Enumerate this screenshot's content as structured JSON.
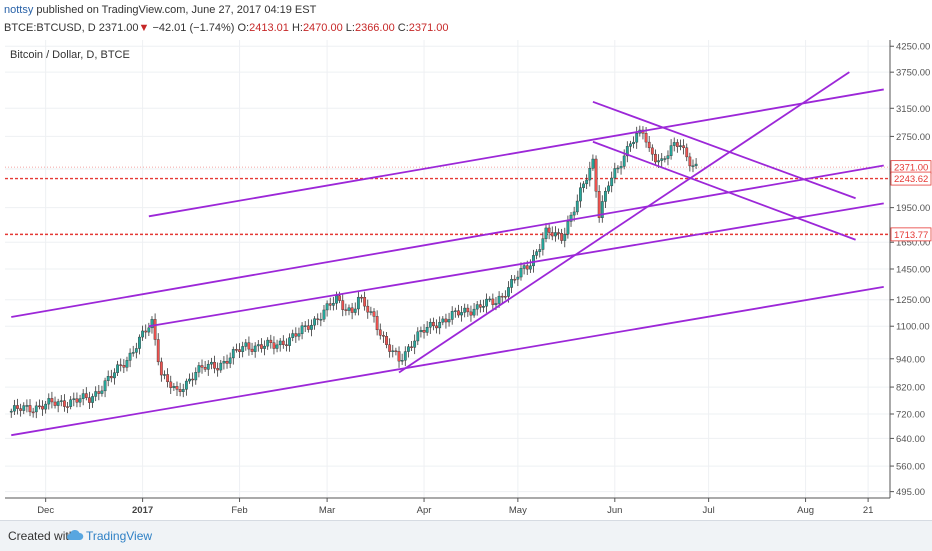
{
  "header": {
    "author": "nottsy",
    "published_text": "published on TradingView.com, June 27, 2017 04:19 EST",
    "symbol": "BTCE:BTCUSD, D",
    "last": "2371.00",
    "change_arrow": "▼",
    "change": "−42.01 (−1.74%)",
    "o_label": "O:",
    "o_value": "2413.01",
    "h_label": "H:",
    "h_value": "2470.00",
    "l_label": "L:",
    "l_value": "2366.00",
    "c_label": "C:",
    "c_value": "2371.00"
  },
  "footer": {
    "created_with": "Created with",
    "brand": "TradingView"
  },
  "colors": {
    "bull": "#26a69a",
    "bear": "#ef5350",
    "trend": "#9c27d8",
    "hline": "#e53935",
    "axis": "#555555"
  },
  "chart_data": {
    "type": "candlestick",
    "title": "Bitcoin / Dollar, D, BTCE",
    "x_tick_labels": [
      "Dec",
      "2017",
      "Feb",
      "Mar",
      "Apr",
      "May",
      "Jun",
      "Jul",
      "Aug",
      "21"
    ],
    "x_tick_dates": [
      "2016-12-01",
      "2017-01-01",
      "2017-02-01",
      "2017-03-01",
      "2017-04-01",
      "2017-05-01",
      "2017-06-01",
      "2017-07-01",
      "2017-08-01",
      "2017-08-21"
    ],
    "y_tick_labels": [
      "4250.00",
      "3750.00",
      "3150.00",
      "2750.00",
      "2350.00",
      "1950.00",
      "1650.00",
      "1450.00",
      "1250.00",
      "1100.00",
      "940.00",
      "820.00",
      "720.00",
      "640.00",
      "560.00",
      "495.00"
    ],
    "y_scale": "log",
    "price_labels": [
      {
        "text": "2371.00",
        "value": 2371,
        "color": "#e53935",
        "style": "dotted"
      },
      {
        "text": "2243.62",
        "value": 2243.62,
        "color": "#e53935",
        "style": "dashed"
      },
      {
        "text": "1713.77",
        "value": 1713.77,
        "color": "#e53935",
        "style": "dashed"
      }
    ],
    "series": [
      {
        "name": "BTCUSD",
        "close_path": [
          [
            "2016-11-20",
            730
          ],
          [
            "2016-12-05",
            760
          ],
          [
            "2016-12-15",
            775
          ],
          [
            "2016-12-22",
            860
          ],
          [
            "2016-12-28",
            960
          ],
          [
            "2017-01-04",
            1120
          ],
          [
            "2017-01-07",
            880
          ],
          [
            "2017-01-12",
            790
          ],
          [
            "2017-01-18",
            890
          ],
          [
            "2017-01-25",
            910
          ],
          [
            "2017-02-03",
            1000
          ],
          [
            "2017-02-12",
            1000
          ],
          [
            "2017-02-20",
            1060
          ],
          [
            "2017-02-28",
            1180
          ],
          [
            "2017-03-04",
            1250
          ],
          [
            "2017-03-09",
            1180
          ],
          [
            "2017-03-11",
            1250
          ],
          [
            "2017-03-16",
            1150
          ],
          [
            "2017-03-20",
            1000
          ],
          [
            "2017-03-24",
            930
          ],
          [
            "2017-03-29",
            1040
          ],
          [
            "2017-04-05",
            1120
          ],
          [
            "2017-04-15",
            1190
          ],
          [
            "2017-04-24",
            1240
          ],
          [
            "2017-05-01",
            1400
          ],
          [
            "2017-05-05",
            1500
          ],
          [
            "2017-05-10",
            1720
          ],
          [
            "2017-05-15",
            1700
          ],
          [
            "2017-05-20",
            2000
          ],
          [
            "2017-05-25",
            2450
          ],
          [
            "2017-05-27",
            1900
          ],
          [
            "2017-05-30",
            2180
          ],
          [
            "2017-06-02",
            2350
          ],
          [
            "2017-06-06",
            2700
          ],
          [
            "2017-06-10",
            2800
          ],
          [
            "2017-06-12",
            2550
          ],
          [
            "2017-06-16",
            2450
          ],
          [
            "2017-06-19",
            2580
          ],
          [
            "2017-06-22",
            2650
          ],
          [
            "2017-06-24",
            2500
          ],
          [
            "2017-06-27",
            2371
          ]
        ]
      }
    ],
    "trendlines": [
      {
        "from": [
          "2017-01-03",
          1870
        ],
        "to": [
          "2017-08-26",
          3450
        ]
      },
      {
        "from": [
          "2016-11-20",
          1150
        ],
        "to": [
          "2017-08-26",
          2390
        ]
      },
      {
        "from": [
          "2017-01-03",
          1100
        ],
        "to": [
          "2017-08-26",
          1990
        ]
      },
      {
        "from": [
          "2016-11-20",
          650
        ],
        "to": [
          "2017-08-26",
          1330
        ]
      },
      {
        "from": [
          "2017-03-24",
          880
        ],
        "to": [
          "2017-08-15",
          3750
        ]
      },
      {
        "from": [
          "2017-05-25",
          3250
        ],
        "to": [
          "2017-08-17",
          2040
        ]
      },
      {
        "from": [
          "2017-05-25",
          2680
        ],
        "to": [
          "2017-08-17",
          1670
        ]
      }
    ]
  }
}
